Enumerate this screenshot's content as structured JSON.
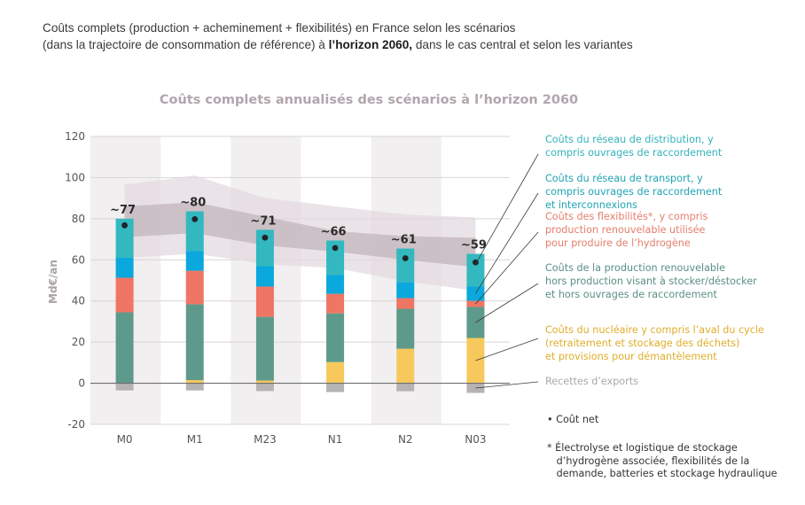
{
  "heading": {
    "line1": "Coûts complets (production + acheminement + flexibilités) en France selon les scénarios",
    "line2_pre": "(dans la trajectoire de consommation de référence) à ",
    "line2_bold": "l’horizon 2060,",
    "line2_post": " dans le cas central et selon les variantes"
  },
  "chart_data": {
    "type": "bar",
    "stacked": true,
    "title": "Coûts complets annualisés des scénarios à l’horizon 2060",
    "xlabel": "",
    "ylabel": "Md€/an",
    "ylim": [
      -20,
      120
    ],
    "yticks": [
      120,
      100,
      80,
      60,
      40,
      20,
      0,
      -20
    ],
    "grid": true,
    "categories": [
      "M0",
      "M1",
      "M23",
      "N1",
      "N2",
      "N03"
    ],
    "shaded_categories": [
      "M0",
      "M23",
      "N2"
    ],
    "series": [
      {
        "name": "Recettes d’exports",
        "color": "#b5b3b4",
        "values": [
          -3.5,
          -3.5,
          -3.8,
          -4.3,
          -3.9,
          -4.7
        ]
      },
      {
        "name": "Coûts du nucléaire y compris l’aval du cycle (retraitement et stockage des déchets) et provisions pour démantèlement",
        "color": "#f7c95c",
        "values": [
          0,
          1.5,
          1.3,
          10.3,
          16.8,
          22
        ]
      },
      {
        "name": "Coûts de la production renouvelable hors production visant à stocker/déstocker et hors ouvrages de raccordement",
        "color": "#5e9a8b",
        "values": [
          34.5,
          36.9,
          31,
          23.7,
          19.4,
          15.1
        ]
      },
      {
        "name": "Coûts des flexibilités*, y compris production renouvelable utilisée pour produire de l’hydrogène",
        "color": "#ef7564",
        "values": [
          16.8,
          16.3,
          14.7,
          9.5,
          5.2,
          3
        ]
      },
      {
        "name": "Coûts du réseau de transport, y compris ouvrages de raccordement et interconnexions",
        "color": "#0aa8dc",
        "values": [
          9.7,
          9.5,
          9.9,
          9.1,
          7.7,
          6.9
        ]
      },
      {
        "name": "Coûts du réseau de distribution, y compris ouvrages de raccordement",
        "color": "#33b8c0",
        "values": [
          19,
          19.4,
          17.7,
          16.8,
          16.4,
          15.9
        ]
      }
    ],
    "net_cost": {
      "name": "Coût net",
      "values": [
        77,
        80,
        71,
        66,
        61,
        59
      ],
      "labels": [
        "~77",
        "~80",
        "~71",
        "~66",
        "~61",
        "~59"
      ]
    },
    "bands": {
      "outer": {
        "low": [
          61,
          63,
          58,
          56,
          49.6,
          45
        ],
        "high": [
          96.5,
          101,
          90,
          86,
          82,
          80.6
        ],
        "color": "#e3dadf"
      },
      "inner": {
        "low": [
          71,
          73,
          67,
          64,
          60,
          56.5
        ],
        "high": [
          86,
          88,
          81,
          74,
          71.5,
          70.7
        ],
        "color": "#c2b5bb"
      }
    }
  },
  "legend": [
    {
      "text": "Coûts du réseau de distribution, y\ncompris ouvrages de raccordement",
      "color": "#33b3bb"
    },
    {
      "text": "Coûts du réseau de transport, y\ncompris ouvrages de raccordement\net interconnexions",
      "color": "#20a4b5"
    },
    {
      "text": "Coûts des flexibilités*, y compris\nproduction renouvelable utilisée\npour produire de l’hydrogène",
      "color": "#e57e6c"
    },
    {
      "text": "Coûts de la production renouvelable\nhors production visant à stocker/déstocker\net hors ouvrages de raccordement",
      "color": "#5a8f86"
    },
    {
      "text": "Coûts du nucléaire y compris l’aval du cycle\n(retraitement et stockage des déchets)\net provisions pour démantèlement",
      "color": "#e0ae2c"
    },
    {
      "text": "Recettes d’exports",
      "color": "#a9a9a9"
    }
  ],
  "notes": {
    "net": "• Coût net",
    "footnote": "* Électrolyse et logistique de stockage\n   d’hydrogène associée, flexibilités de la\n   demande, batteries et stockage hydraulique"
  }
}
